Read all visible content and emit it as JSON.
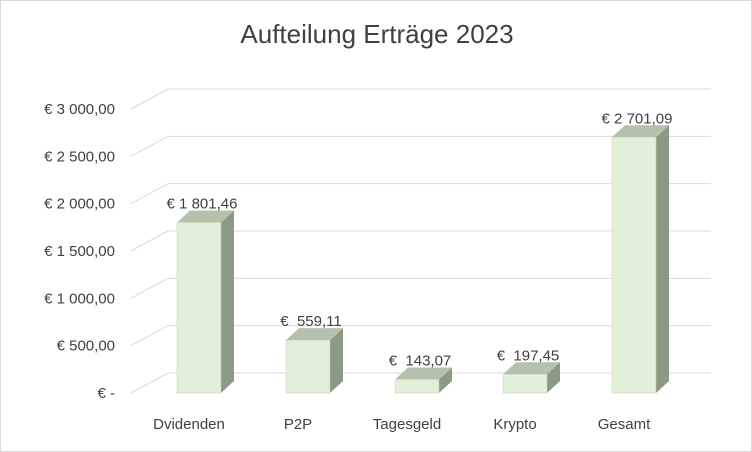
{
  "chart_data": {
    "type": "bar",
    "title": "Aufteilung Erträge 2023",
    "categories": [
      "Dvidenden",
      "P2P",
      "Tagesgeld",
      "Krypto",
      "Gesamt"
    ],
    "values": [
      1801.46,
      559.11,
      143.07,
      197.45,
      2701.09
    ],
    "data_labels": [
      "€ 1 801,46",
      "€  559,11",
      "€  143,07",
      "€  197,45",
      "€ 2 701,09"
    ],
    "y_ticks": [
      0,
      500,
      1000,
      1500,
      2000,
      2500,
      3000
    ],
    "y_tick_labels": [
      "€ -",
      "€ 500,00",
      "€ 1 000,00",
      "€ 1 500,00",
      "€ 2 000,00",
      "€ 2 500,00",
      "€ 3 000,00"
    ],
    "ylim": [
      0,
      3000
    ],
    "xlabel": "",
    "ylabel": "",
    "grid": true,
    "legend": "none",
    "colors": {
      "bar_front": "#e2efd9",
      "bar_side": "#8c9a85",
      "bar_top": "#b5c1ad",
      "bar_edge": "#c5d3bb",
      "grid": "#d9d9d9",
      "text": "#404040"
    }
  }
}
